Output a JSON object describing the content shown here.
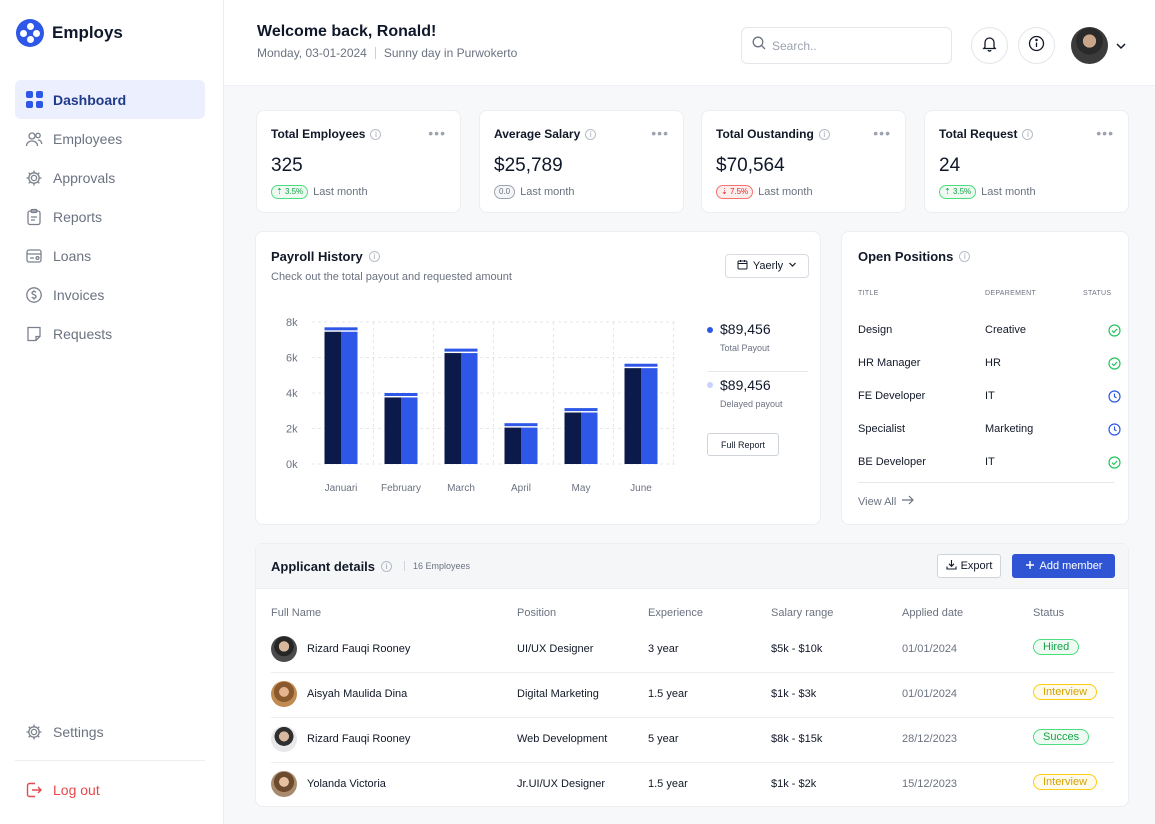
{
  "app": {
    "name": "Employs"
  },
  "sidebar": {
    "items": [
      {
        "label": "Dashboard",
        "icon": "grid-icon",
        "active": true
      },
      {
        "label": "Employees",
        "icon": "users-icon"
      },
      {
        "label": "Approvals",
        "icon": "gear-icon"
      },
      {
        "label": "Reports",
        "icon": "clipboard-icon"
      },
      {
        "label": "Loans",
        "icon": "loan-icon"
      },
      {
        "label": "Invoices",
        "icon": "dollar-circle-icon"
      },
      {
        "label": "Requests",
        "icon": "request-icon"
      }
    ],
    "settings_label": "Settings",
    "logout_label": "Log out"
  },
  "header": {
    "welcome": "Welcome back, Ronald!",
    "date": "Monday, 03-01-2024",
    "weather": "Sunny day in Purwokerto",
    "search_placeholder": "Search.."
  },
  "stats": [
    {
      "title": "Total Employees",
      "value": "325",
      "change": "3.5%",
      "trend": "up",
      "foot": "Last month"
    },
    {
      "title": "Average Salary",
      "value": "$25,789",
      "change": "0.0",
      "trend": "flat",
      "foot": "Last month"
    },
    {
      "title": "Total Oustanding",
      "value": "$70,564",
      "change": "7.5%",
      "trend": "down",
      "foot": "Last month"
    },
    {
      "title": "Total Request",
      "value": "24",
      "change": "3.5%",
      "trend": "up",
      "foot": "Last month"
    }
  ],
  "payroll": {
    "title": "Payroll History",
    "subtitle": "Check out the total payout and requested amount",
    "period": "Yaerly",
    "total_payout": "$89,456",
    "total_payout_label": "Total Payout",
    "delayed_payout": "$89,456",
    "delayed_payout_label": "Delayed payout",
    "full_report": "Full Report"
  },
  "chart_data": {
    "type": "bar",
    "categories": [
      "Januari",
      "February",
      "March",
      "April",
      "May",
      "June"
    ],
    "values": [
      7450,
      3750,
      6250,
      2050,
      2900,
      5400
    ],
    "marker_values": [
      7700,
      4000,
      6500,
      2300,
      3150,
      5650
    ],
    "yticks": [
      "0k",
      "2k",
      "4k",
      "6k",
      "8k"
    ],
    "ylim": [
      0,
      8000
    ],
    "colors": {
      "bar": "#2e57e8",
      "bar_dark": "#0b1a4a",
      "marker": "#2e57e8"
    }
  },
  "positions": {
    "title": "Open Positions",
    "headers": [
      "TITLE",
      "DEPAREMENT",
      "STATUS"
    ],
    "rows": [
      {
        "title": "Design",
        "department": "Creative",
        "status": "check"
      },
      {
        "title": "HR Manager",
        "department": "HR",
        "status": "check"
      },
      {
        "title": "FE Developer",
        "department": "IT",
        "status": "clock"
      },
      {
        "title": "Specialist",
        "department": "Marketing",
        "status": "clock"
      },
      {
        "title": "BE Developer",
        "department": "IT",
        "status": "check"
      }
    ],
    "view_all": "View All"
  },
  "applicants": {
    "title": "Applicant details",
    "count": "16 Employees",
    "export_label": "Export",
    "add_label": "Add member",
    "headers": [
      "Full Name",
      "Position",
      "Experience",
      "Salary range",
      "Applied date",
      "Status"
    ],
    "rows": [
      {
        "name": "Rizard Fauqi Rooney",
        "position": "UI/UX Designer",
        "experience": "3 year",
        "salary": "$5k - $10k",
        "date": "01/01/2024",
        "status": "Hired",
        "tone": "green"
      },
      {
        "name": "Aisyah Maulida Dina",
        "position": "Digital Marketing",
        "experience": "1.5 year",
        "salary": "$1k - $3k",
        "date": "01/01/2024",
        "status": "Interview",
        "tone": "yellow"
      },
      {
        "name": "Rizard Fauqi Rooney",
        "position": "Web Development",
        "experience": "5 year",
        "salary": "$8k - $15k",
        "date": "28/12/2023",
        "status": "Succes",
        "tone": "green"
      },
      {
        "name": "Yolanda Victoria",
        "position": "Jr.UI/UX Designer",
        "experience": "1.5 year",
        "salary": "$1k - $2k",
        "date": "15/12/2023",
        "status": "Interview",
        "tone": "yellow"
      }
    ]
  }
}
